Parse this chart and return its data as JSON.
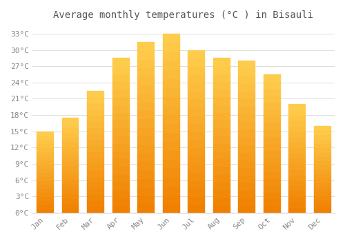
{
  "title": "Average monthly temperatures (°C ) in Bisauli",
  "months": [
    "Jan",
    "Feb",
    "Mar",
    "Apr",
    "May",
    "Jun",
    "Jul",
    "Aug",
    "Sep",
    "Oct",
    "Nov",
    "Dec"
  ],
  "values": [
    15,
    17.5,
    22.5,
    28.5,
    31.5,
    33,
    30,
    28.5,
    28,
    25.5,
    20,
    16
  ],
  "bar_color": "#FFA500",
  "bar_color_light": "#FFD060",
  "bar_color_dark": "#F08000",
  "background_color": "#ffffff",
  "grid_color": "#dddddd",
  "ytick_labels": [
    "0°C",
    "3°C",
    "6°C",
    "9°C",
    "12°C",
    "15°C",
    "18°C",
    "21°C",
    "24°C",
    "27°C",
    "30°C",
    "33°C"
  ],
  "ytick_values": [
    0,
    3,
    6,
    9,
    12,
    15,
    18,
    21,
    24,
    27,
    30,
    33
  ],
  "ylim": [
    0,
    34.5
  ],
  "title_fontsize": 10,
  "tick_fontsize": 8,
  "font_color": "#888888",
  "title_color": "#555555"
}
